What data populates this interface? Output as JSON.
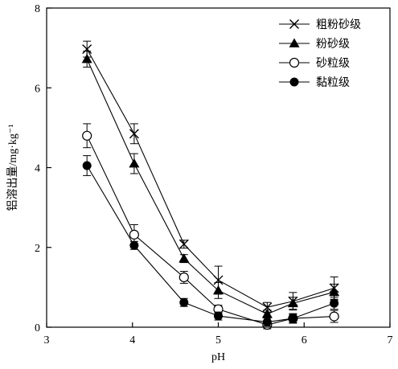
{
  "chart_data": {
    "type": "line",
    "xlabel": "pH",
    "ylabel": "铝溶出量/mg·kg⁻¹",
    "xlim": [
      3,
      7
    ],
    "ylim": [
      0,
      8
    ],
    "xticks": [
      "3",
      "4",
      "5",
      "6",
      "7"
    ],
    "yticks": [
      "0",
      "2",
      "4",
      "6",
      "8"
    ],
    "grid": false,
    "legend_position": "top-right",
    "series": [
      {
        "name": "粗粉砂级",
        "marker": "x-cross",
        "x": [
          3.47,
          4.02,
          4.6,
          5.0,
          5.57,
          5.87,
          6.35
        ],
        "y": [
          6.97,
          4.85,
          2.08,
          1.18,
          0.5,
          0.65,
          0.98
        ],
        "err": [
          0.2,
          0.25,
          0.1,
          0.35,
          0.12,
          0.22,
          0.28
        ]
      },
      {
        "name": "粉砂级",
        "marker": "filled-triangle",
        "x": [
          3.47,
          4.02,
          4.6,
          5.0,
          5.57,
          5.87,
          6.35
        ],
        "y": [
          6.72,
          4.1,
          1.72,
          0.92,
          0.33,
          0.6,
          0.88
        ],
        "err": [
          0.2,
          0.25,
          0.1,
          0.2,
          0.1,
          0.15,
          0.2
        ]
      },
      {
        "name": "砂粒级",
        "marker": "open-circle",
        "x": [
          3.47,
          4.02,
          4.6,
          5.0,
          5.57,
          5.87,
          6.35
        ],
        "y": [
          4.8,
          2.32,
          1.25,
          0.45,
          0.06,
          0.22,
          0.27
        ],
        "err": [
          0.3,
          0.25,
          0.15,
          0.1,
          0.1,
          0.12,
          0.15
        ]
      },
      {
        "name": "黏粒级",
        "marker": "filled-circle",
        "x": [
          3.47,
          4.02,
          4.6,
          5.0,
          5.57,
          5.87,
          6.35
        ],
        "y": [
          4.05,
          2.05,
          0.62,
          0.28,
          0.13,
          0.22,
          0.6
        ],
        "err": [
          0.25,
          0.1,
          0.1,
          0.1,
          0.1,
          0.1,
          0.15
        ]
      }
    ]
  }
}
